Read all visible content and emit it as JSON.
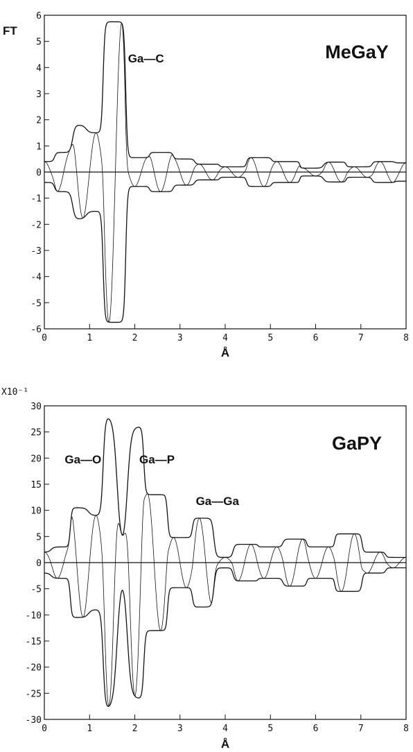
{
  "chart_data": [
    {
      "type": "line",
      "title": "MeGaY",
      "ylabel": "FT",
      "xlabel": "Å",
      "xlim": [
        0,
        8
      ],
      "ylim": [
        -6,
        6
      ],
      "x_ticks": [
        "0",
        "1",
        "2",
        "3",
        "4",
        "5",
        "6",
        "7",
        "8"
      ],
      "y_ticks": [
        "6",
        "5",
        "4",
        "3",
        "2",
        "1",
        "0",
        "-1",
        "-2",
        "-3",
        "-4",
        "-5",
        "-6"
      ],
      "y_multiplier": "",
      "annotations": [
        {
          "text": "Ga—C",
          "x": 1.85,
          "y": 4.2
        }
      ],
      "envelope_peaks": [
        {
          "x": 0.0,
          "y": 0.4
        },
        {
          "x": 0.45,
          "y": 0.75
        },
        {
          "x": 0.8,
          "y": 1.8
        },
        {
          "x": 1.05,
          "y": 1.5
        },
        {
          "x": 1.55,
          "y": 5.75
        },
        {
          "x": 2.05,
          "y": 0.55
        },
        {
          "x": 2.6,
          "y": 0.75
        },
        {
          "x": 3.1,
          "y": 0.5
        },
        {
          "x": 3.55,
          "y": 0.3
        },
        {
          "x": 4.2,
          "y": 0.2
        },
        {
          "x": 4.75,
          "y": 0.55
        },
        {
          "x": 5.3,
          "y": 0.4
        },
        {
          "x": 6.0,
          "y": 0.15
        },
        {
          "x": 6.35,
          "y": 0.38
        },
        {
          "x": 7.0,
          "y": 0.2
        },
        {
          "x": 7.5,
          "y": 0.4
        },
        {
          "x": 8.0,
          "y": 0.35
        }
      ]
    },
    {
      "type": "line",
      "title": "GaPY",
      "ylabel": "",
      "xlabel": "Å",
      "xlim": [
        0,
        8
      ],
      "ylim": [
        -30,
        30
      ],
      "x_ticks": [
        "0",
        "1",
        "2",
        "3",
        "4",
        "5",
        "6",
        "7",
        "8"
      ],
      "y_ticks": [
        "30",
        "25",
        "20",
        "15",
        "10",
        "5",
        "0",
        "-5",
        "-10",
        "-15",
        "-20",
        "-25",
        "-30"
      ],
      "y_multiplier": "X10⁻¹",
      "annotations": [
        {
          "text": "Ga—O",
          "x": 0.45,
          "y": 19
        },
        {
          "text": "Ga—P",
          "x": 2.1,
          "y": 19
        },
        {
          "text": "Ga—Ga",
          "x": 3.35,
          "y": 11
        }
      ],
      "envelope_peaks": [
        {
          "x": 0.0,
          "y": 2
        },
        {
          "x": 0.3,
          "y": 3
        },
        {
          "x": 0.85,
          "y": 10.5
        },
        {
          "x": 1.1,
          "y": 9
        },
        {
          "x": 1.5,
          "y": 28
        },
        {
          "x": 1.72,
          "y": 2
        },
        {
          "x": 1.95,
          "y": 26
        },
        {
          "x": 2.45,
          "y": 13
        },
        {
          "x": 3.0,
          "y": 4.8
        },
        {
          "x": 3.55,
          "y": 8.5
        },
        {
          "x": 3.95,
          "y": 1
        },
        {
          "x": 4.4,
          "y": 3.5
        },
        {
          "x": 5.05,
          "y": 3
        },
        {
          "x": 5.5,
          "y": 4.5
        },
        {
          "x": 6.1,
          "y": 3
        },
        {
          "x": 6.75,
          "y": 5.5
        },
        {
          "x": 7.3,
          "y": 2
        },
        {
          "x": 7.8,
          "y": 1
        },
        {
          "x": 8.0,
          "y": 1
        }
      ]
    }
  ]
}
